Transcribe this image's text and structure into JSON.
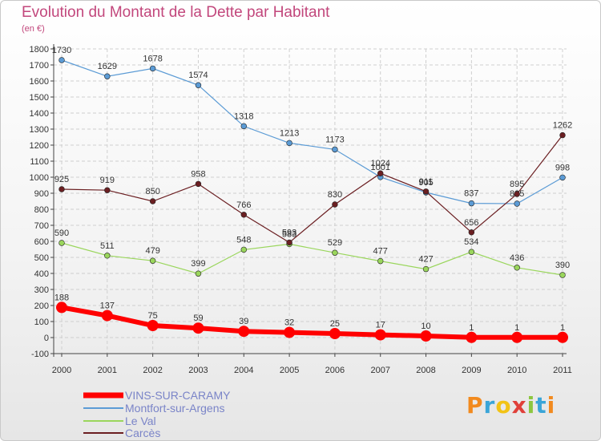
{
  "chart_data": {
    "type": "line",
    "title": "Evolution du Montant de la Dette par Habitant",
    "unit": "(en €)",
    "x": [
      "2000",
      "2001",
      "2002",
      "2003",
      "2004",
      "2005",
      "2006",
      "2007",
      "2008",
      "2009",
      "2010",
      "2011"
    ],
    "ylim": [
      -100,
      1800
    ],
    "yticks": [
      -100,
      0,
      100,
      200,
      300,
      400,
      500,
      600,
      700,
      800,
      900,
      1000,
      1100,
      1200,
      1300,
      1400,
      1500,
      1600,
      1700,
      1800
    ],
    "grid": true,
    "legend_position": "bottom-left",
    "series": [
      {
        "name": "VINS-SUR-CARAMY",
        "color": "#ff0000",
        "values": [
          188,
          137,
          75,
          59,
          39,
          32,
          25,
          17,
          10,
          1,
          1,
          1
        ]
      },
      {
        "name": "Montfort-sur-Argens",
        "color": "#5b9bd5",
        "values": [
          1730,
          1629,
          1678,
          1574,
          1318,
          1213,
          1173,
          1001,
          905,
          837,
          835,
          998
        ]
      },
      {
        "name": "Le Val",
        "color": "#9ad65c",
        "values": [
          590,
          511,
          479,
          399,
          548,
          583,
          529,
          477,
          427,
          534,
          436,
          390
        ]
      },
      {
        "name": "Carcès",
        "color": "#6b1f22",
        "values": [
          925,
          919,
          850,
          958,
          766,
          593,
          830,
          1024,
          911,
          656,
          895,
          1262
        ]
      }
    ]
  },
  "logo_text": "Proxiti"
}
